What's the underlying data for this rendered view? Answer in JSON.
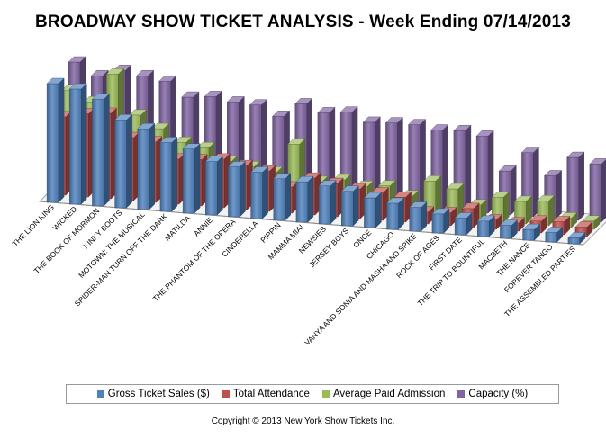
{
  "title": "BROADWAY SHOW TICKET ANALYSIS - Week Ending 07/14/2013",
  "copyright": "Copyright © 2013 New York Show Tickets Inc.",
  "chart_data": {
    "type": "bar",
    "title": "BROADWAY SHOW TICKET ANALYSIS - Week Ending 07/14/2013",
    "grouping": "3d-clustered-column",
    "legend_position": "bottom",
    "categories": [
      "THE LION KING",
      "WICKED",
      "THE BOOK OF MORMON",
      "KINKY BOOTS",
      "MOTOWN: THE MUSICAL",
      "SPIDER-MAN TURN OFF THE DARK",
      "MATILDA",
      "ANNIE",
      "THE PHANTOM OF THE OPERA",
      "CINDERELLA",
      "PIPPIN",
      "MAMMA MIA!",
      "NEWSIES",
      "JERSEY BOYS",
      "ONCE",
      "CHICAGO",
      "VANYA AND SONIA AND MASHA AND SPIKE",
      "ROCK OF AGES",
      "FIRST DATE",
      "THE TRIP TO BOUNTIFUL",
      "MACBETH",
      "THE NANCE",
      "FOREVER TANGO",
      "THE ASSEMBLED PARTIES"
    ],
    "series": [
      {
        "name": "Gross Ticket Sales ($)",
        "color": "#4f81bd",
        "values": [
          100,
          97,
          90,
          74,
          68,
          58,
          54,
          45,
          42,
          39,
          35,
          34,
          32,
          29,
          25,
          22,
          20,
          16,
          14,
          13,
          11,
          9,
          8,
          5
        ]
      },
      {
        "name": "Total Attendance",
        "color": "#c0504d",
        "values": [
          66,
          70,
          72,
          53,
          51,
          38,
          39,
          41,
          37,
          34,
          22,
          31,
          28,
          25,
          23,
          21,
          10,
          11,
          16,
          8,
          7,
          10,
          11,
          8
        ]
      },
      {
        "name": "Average Paid Admission",
        "color": "#9bbb59",
        "values": [
          82,
          74,
          99,
          66,
          56,
          46,
          43,
          33,
          30,
          27,
          52,
          22,
          25,
          21,
          23,
          16,
          30,
          25,
          13,
          21,
          19,
          21,
          8,
          7
        ]
      },
      {
        "name": "Capacity (%)",
        "color": "#8064a2",
        "values": [
          100,
          90,
          96,
          93,
          90,
          78,
          80,
          77,
          76,
          68,
          80,
          74,
          76,
          69,
          70,
          70,
          67,
          68,
          65,
          37,
          54,
          36,
          53,
          49
        ]
      }
    ]
  }
}
